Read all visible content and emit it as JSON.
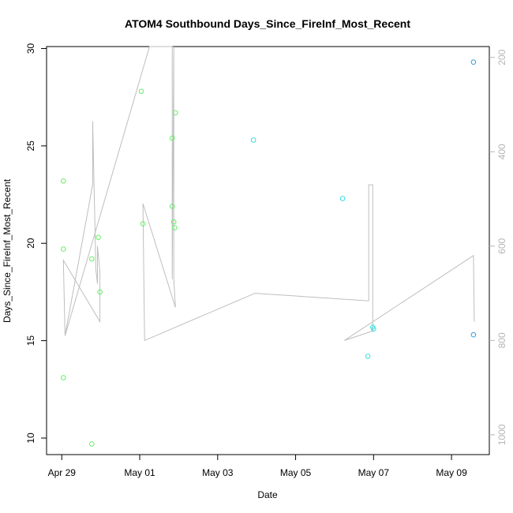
{
  "chart_data": {
    "type": "scatter",
    "title": "ATOM4 Southbound Days_Since_FireInf_Most_Recent",
    "xlabel": "Date",
    "ylabel": "Days_Since_FireInf_Most_Recent",
    "x_ticks": [
      "Apr 29",
      "May 01",
      "May 03",
      "May 05",
      "May 07",
      "May 09"
    ],
    "xlim_days": [
      -0.39,
      10.97
    ],
    "ylim": [
      9.15,
      30.1
    ],
    "y_ticks": [
      10,
      15,
      20,
      25,
      30
    ],
    "y2_ticks": [
      200,
      400,
      600,
      800,
      1000
    ],
    "y2lim": [
      1042,
      177
    ],
    "grid": false,
    "colors": {
      "points_green": "#66ee66",
      "points_cyan": "#33dddd",
      "points_blue": "#2e9ed6",
      "line": "#bebebe",
      "right_axis": "#b5b5b5"
    },
    "points": [
      {
        "date": "Apr 29 01:00",
        "y": 23.2,
        "color": "points_green"
      },
      {
        "date": "Apr 29 01:00",
        "y": 19.7,
        "color": "points_green"
      },
      {
        "date": "Apr 29 01:00",
        "y": 13.1,
        "color": "points_green"
      },
      {
        "date": "Apr 29 18:30",
        "y": 19.2,
        "color": "points_green"
      },
      {
        "date": "Apr 29 18:30",
        "y": 9.7,
        "color": "points_green"
      },
      {
        "date": "Apr 29 22:30",
        "y": 20.3,
        "color": "points_green"
      },
      {
        "date": "Apr 29 23:30",
        "y": 17.5,
        "color": "points_green"
      },
      {
        "date": "May 01 01:00",
        "y": 27.8,
        "color": "points_green"
      },
      {
        "date": "May 01 02:00",
        "y": 21.0,
        "color": "points_green"
      },
      {
        "date": "May 01 20:00",
        "y": 21.9,
        "color": "points_green"
      },
      {
        "date": "May 01 20:00",
        "y": 25.4,
        "color": "points_green"
      },
      {
        "date": "May 01 21:00",
        "y": 21.1,
        "color": "points_green"
      },
      {
        "date": "May 01 21:30",
        "y": 20.8,
        "color": "points_green"
      },
      {
        "date": "May 01 22:00",
        "y": 26.7,
        "color": "points_green"
      },
      {
        "date": "May 03 22:00",
        "y": 25.3,
        "color": "points_cyan"
      },
      {
        "date": "May 06 05:00",
        "y": 22.3,
        "color": "points_cyan"
      },
      {
        "date": "May 06 20:30",
        "y": 14.2,
        "color": "points_cyan"
      },
      {
        "date": "May 06 23:30",
        "y": 15.7,
        "color": "points_cyan"
      },
      {
        "date": "May 07 00:00",
        "y": 15.6,
        "color": "points_cyan"
      },
      {
        "date": "May 09 13:30",
        "y": 29.3,
        "color": "points_blue"
      },
      {
        "date": "May 09 13:30",
        "y": 15.3,
        "color": "points_blue"
      }
    ],
    "line_series": [
      {
        "date": "Apr 29 01:00",
        "y2": 630
      },
      {
        "date": "Apr 29 02:00",
        "y2": 790
      },
      {
        "date": "Apr 29 19:00",
        "y2": 470
      },
      {
        "date": "Apr 29 19:00",
        "y2": 335
      },
      {
        "date": "Apr 29 21:00",
        "y2": 650
      },
      {
        "date": "Apr 29 22:00",
        "y2": 680
      },
      {
        "date": "Apr 29 22:00",
        "y2": 600
      },
      {
        "date": "Apr 29 23:30",
        "y2": 655
      },
      {
        "date": "Apr 29 23:30",
        "y2": 760
      },
      {
        "date": "Apr 29 01:00",
        "y2": 630
      },
      {
        "date": "Apr 29 02:00",
        "y2": 790
      },
      {
        "date": "May 01 06:00",
        "y2": 177
      },
      {
        "date": "May 01 20:00",
        "y2": 177
      },
      {
        "date": "May 01 20:00",
        "y2": 670
      },
      {
        "date": "May 01 21:00",
        "y2": 177
      },
      {
        "date": "May 01 21:00",
        "y2": 670
      },
      {
        "date": "May 01 22:00",
        "y2": 730
      },
      {
        "date": "May 01 02:00",
        "y2": 510
      },
      {
        "date": "May 01 03:00",
        "y2": 800
      },
      {
        "date": "May 03 23:00",
        "y2": 700
      },
      {
        "date": "May 06 21:00",
        "y2": 716
      },
      {
        "date": "May 06 21:00",
        "y2": 470
      },
      {
        "date": "May 06 23:30",
        "y2": 470
      },
      {
        "date": "May 06 23:30",
        "y2": 780
      },
      {
        "date": "May 06 06:00",
        "y2": 800
      },
      {
        "date": "May 09 13:30",
        "y2": 620
      },
      {
        "date": "May 09 14:00",
        "y2": 760
      }
    ]
  }
}
